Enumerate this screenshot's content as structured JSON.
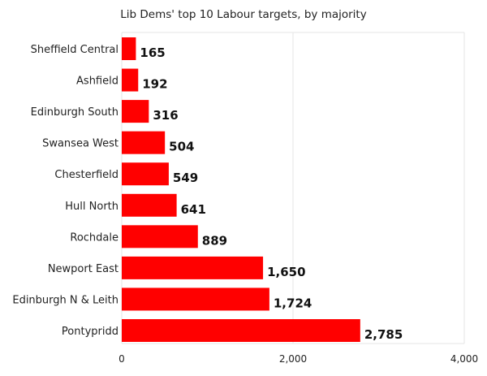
{
  "chart_data": {
    "type": "bar",
    "orientation": "horizontal",
    "title": "Lib Dems' top 10 Labour targets, by majority",
    "xlabel": "",
    "ylabel": "",
    "categories": [
      "Sheffield Central",
      "Ashfield",
      "Edinburgh South",
      "Swansea West",
      "Chesterfield",
      "Hull North",
      "Rochdale",
      "Newport East",
      "Edinburgh N & Leith",
      "Pontypridd"
    ],
    "values": [
      165,
      192,
      316,
      504,
      549,
      641,
      889,
      1650,
      1724,
      2785
    ],
    "value_labels": [
      "165",
      "192",
      "316",
      "504",
      "549",
      "641",
      "889",
      "1,650",
      "1,724",
      "2,785"
    ],
    "xlim": [
      0,
      4000
    ],
    "x_ticks": [
      0,
      2000,
      4000
    ],
    "x_tick_labels": [
      "0",
      "2,000",
      "4,000"
    ],
    "grid": true,
    "legend": "none",
    "bar_color": "#ff0000",
    "grid_color": "#e6e6e6"
  }
}
